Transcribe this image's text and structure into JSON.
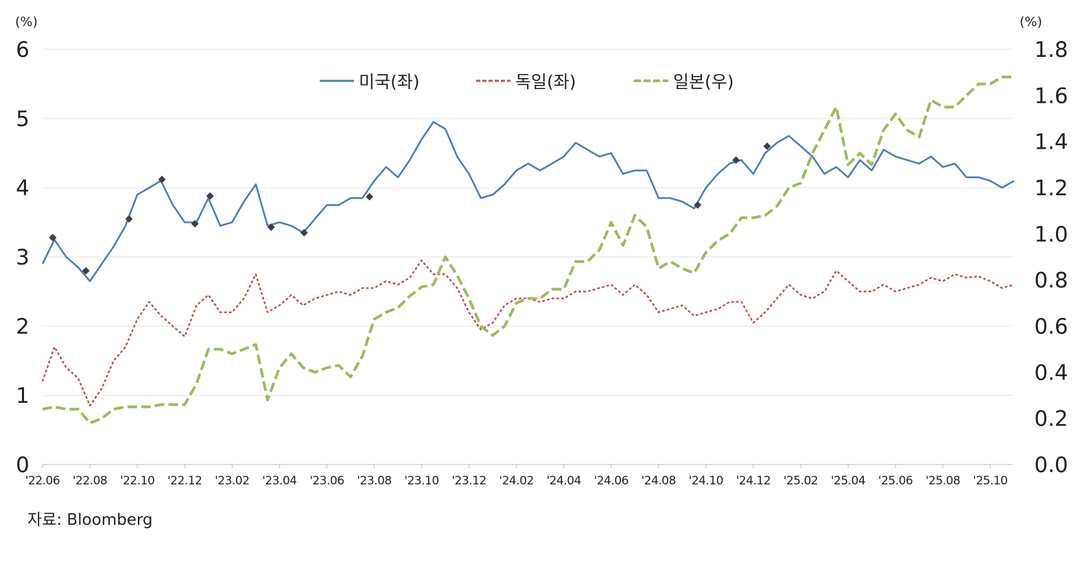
{
  "chart_data": {
    "type": "line",
    "title": "",
    "source": "자료: Bloomberg",
    "left_axis": {
      "unit_label": "(%)",
      "ylim": [
        0,
        6
      ],
      "ticks": [
        "0",
        "1",
        "2",
        "3",
        "4",
        "5",
        "6"
      ]
    },
    "right_axis": {
      "unit_label": "(%)",
      "ylim": [
        0,
        1.8
      ],
      "ticks": [
        "0.0",
        "0.2",
        "0.4",
        "0.6",
        "0.8",
        "1.0",
        "1.2",
        "1.4",
        "1.6",
        "1.8"
      ]
    },
    "x_unit": "months since 2022-06",
    "x_range": [
      0,
      41
    ],
    "x_ticks": [
      {
        "m": 0,
        "label": "'22.06"
      },
      {
        "m": 2,
        "label": "'22.08"
      },
      {
        "m": 4,
        "label": "'22.10"
      },
      {
        "m": 6,
        "label": "'22.12"
      },
      {
        "m": 8,
        "label": "'23.02"
      },
      {
        "m": 10,
        "label": "'23.04"
      },
      {
        "m": 12,
        "label": "'23.06"
      },
      {
        "m": 14,
        "label": "'23.08"
      },
      {
        "m": 16,
        "label": "'23.10"
      },
      {
        "m": 18,
        "label": "'23.12"
      },
      {
        "m": 20,
        "label": "'24.02"
      },
      {
        "m": 22,
        "label": "'24.04"
      },
      {
        "m": 24,
        "label": "'24.06"
      },
      {
        "m": 26,
        "label": "'24.08"
      },
      {
        "m": 28,
        "label": "'24.10"
      },
      {
        "m": 30,
        "label": "'24.12"
      },
      {
        "m": 32,
        "label": "'25.02"
      },
      {
        "m": 34,
        "label": "'25.04"
      },
      {
        "m": 36,
        "label": "'25.06"
      },
      {
        "m": 38,
        "label": "'25.08"
      },
      {
        "m": 40,
        "label": "'25.10"
      }
    ],
    "grid": true,
    "legend_position": "top-center",
    "x_start": 0,
    "x_step": 0.5,
    "series": [
      {
        "name": "미국(좌)",
        "axis": "left",
        "color": "#4a7ebf",
        "style": "solid",
        "values": [
          2.9,
          3.25,
          3.0,
          2.85,
          2.65,
          2.9,
          3.15,
          3.45,
          3.9,
          4.0,
          4.1,
          3.75,
          3.5,
          3.5,
          3.85,
          3.45,
          3.5,
          3.8,
          4.05,
          3.45,
          3.5,
          3.45,
          3.35,
          3.55,
          3.75,
          3.75,
          3.85,
          3.85,
          4.1,
          4.3,
          4.15,
          4.4,
          4.7,
          4.95,
          4.85,
          4.45,
          4.2,
          3.85,
          3.9,
          4.05,
          4.25,
          4.35,
          4.25,
          4.35,
          4.45,
          4.65,
          4.55,
          4.45,
          4.5,
          4.2,
          4.25,
          4.25,
          3.85,
          3.85,
          3.8,
          3.7,
          4.0,
          4.2,
          4.35,
          4.4,
          4.2,
          4.5,
          4.65,
          4.75,
          4.6,
          4.45,
          4.2,
          4.3,
          4.15,
          4.4,
          4.25,
          4.55,
          4.45,
          4.4,
          4.35,
          4.45,
          4.3,
          4.35,
          4.15,
          4.15,
          4.1,
          4.0,
          4.1
        ]
      },
      {
        "name": "독일(좌)",
        "axis": "left",
        "color": "#c0504d",
        "style": "dotted",
        "values": [
          1.2,
          1.7,
          1.4,
          1.25,
          0.85,
          1.1,
          1.5,
          1.7,
          2.1,
          2.35,
          2.15,
          2.0,
          1.85,
          2.3,
          2.45,
          2.2,
          2.2,
          2.4,
          2.75,
          2.2,
          2.3,
          2.45,
          2.3,
          2.4,
          2.45,
          2.5,
          2.45,
          2.55,
          2.55,
          2.65,
          2.6,
          2.7,
          2.95,
          2.75,
          2.75,
          2.55,
          2.2,
          1.95,
          2.05,
          2.3,
          2.4,
          2.4,
          2.35,
          2.4,
          2.4,
          2.5,
          2.5,
          2.55,
          2.6,
          2.45,
          2.6,
          2.45,
          2.2,
          2.25,
          2.3,
          2.15,
          2.2,
          2.25,
          2.35,
          2.35,
          2.05,
          2.2,
          2.4,
          2.6,
          2.45,
          2.4,
          2.5,
          2.8,
          2.65,
          2.5,
          2.5,
          2.6,
          2.5,
          2.55,
          2.6,
          2.7,
          2.65,
          2.75,
          2.7,
          2.72,
          2.65,
          2.55,
          2.6
        ]
      },
      {
        "name": "일본(우)",
        "axis": "right",
        "color": "#9bbb59",
        "style": "dashed",
        "values": [
          0.24,
          0.25,
          0.24,
          0.24,
          0.18,
          0.2,
          0.24,
          0.25,
          0.25,
          0.25,
          0.26,
          0.26,
          0.26,
          0.35,
          0.5,
          0.5,
          0.48,
          0.5,
          0.52,
          0.28,
          0.42,
          0.48,
          0.42,
          0.4,
          0.42,
          0.43,
          0.38,
          0.47,
          0.63,
          0.66,
          0.68,
          0.73,
          0.77,
          0.78,
          0.9,
          0.82,
          0.72,
          0.6,
          0.56,
          0.6,
          0.7,
          0.72,
          0.72,
          0.76,
          0.76,
          0.88,
          0.88,
          0.93,
          1.05,
          0.95,
          1.08,
          1.03,
          0.85,
          0.88,
          0.85,
          0.83,
          0.92,
          0.97,
          1.0,
          1.07,
          1.07,
          1.08,
          1.12,
          1.2,
          1.22,
          1.35,
          1.45,
          1.55,
          1.3,
          1.35,
          1.3,
          1.45,
          1.52,
          1.45,
          1.42,
          1.58,
          1.55,
          1.55,
          1.6,
          1.65,
          1.65,
          1.68,
          1.68
        ]
      }
    ],
    "markers": {
      "series": "미국(좌)",
      "shape": "diamond",
      "color": "#404040",
      "points": [
        {
          "m": 0.43,
          "v": 3.28
        },
        {
          "m": 1.83,
          "v": 2.8
        },
        {
          "m": 3.65,
          "v": 3.55
        },
        {
          "m": 5.04,
          "v": 4.12
        },
        {
          "m": 6.43,
          "v": 3.48
        },
        {
          "m": 7.07,
          "v": 3.88
        },
        {
          "m": 9.65,
          "v": 3.43
        },
        {
          "m": 11.04,
          "v": 3.35
        },
        {
          "m": 13.8,
          "v": 3.87
        },
        {
          "m": 27.65,
          "v": 3.75
        },
        {
          "m": 29.27,
          "v": 4.4
        },
        {
          "m": 30.58,
          "v": 4.6
        }
      ]
    }
  }
}
